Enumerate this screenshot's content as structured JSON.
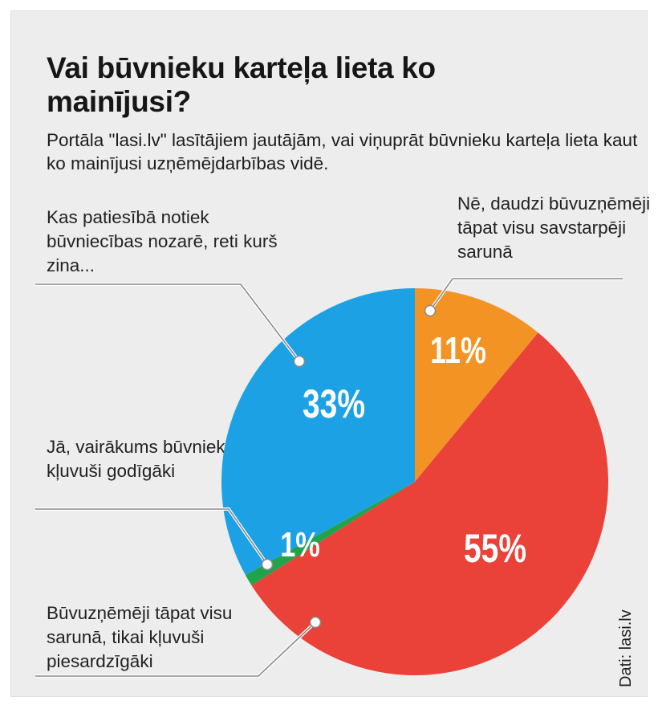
{
  "chart_data": {
    "type": "pie",
    "title": "Vai būvnieku karteļa lieta ko mainījusi?",
    "subtitle": "Portāla \"lasi.lv\" lasītājiem jautājām, vai viņuprāt būvnieku karteļa lieta kaut ko mainījusi uzņēmējdarbības vidē.",
    "slices": [
      {
        "key": "no",
        "label": "Nē, daudzi būvuzņēmēji tāpat visu savstarpēji sarunā",
        "value": 11,
        "display": "11%",
        "color": "#f39324"
      },
      {
        "key": "careful",
        "label": "Būvuzņēmēji tāpat visu sarunā, tikai kļuvuši piesardzīgāki",
        "value": 55,
        "display": "55%",
        "color": "#ea4138"
      },
      {
        "key": "yes",
        "label": "Jā, vairākums būvnieku kļuvuši godīgāki",
        "value": 1,
        "display": "1%",
        "color": "#22a34b"
      },
      {
        "key": "discuss",
        "label": "Kas patiesībā notiek būvniecības nozarē, reti kurš zina...",
        "value": 33,
        "display": "33%",
        "color": "#1ba1e4"
      }
    ],
    "source": "Dati: lasi.lv"
  }
}
